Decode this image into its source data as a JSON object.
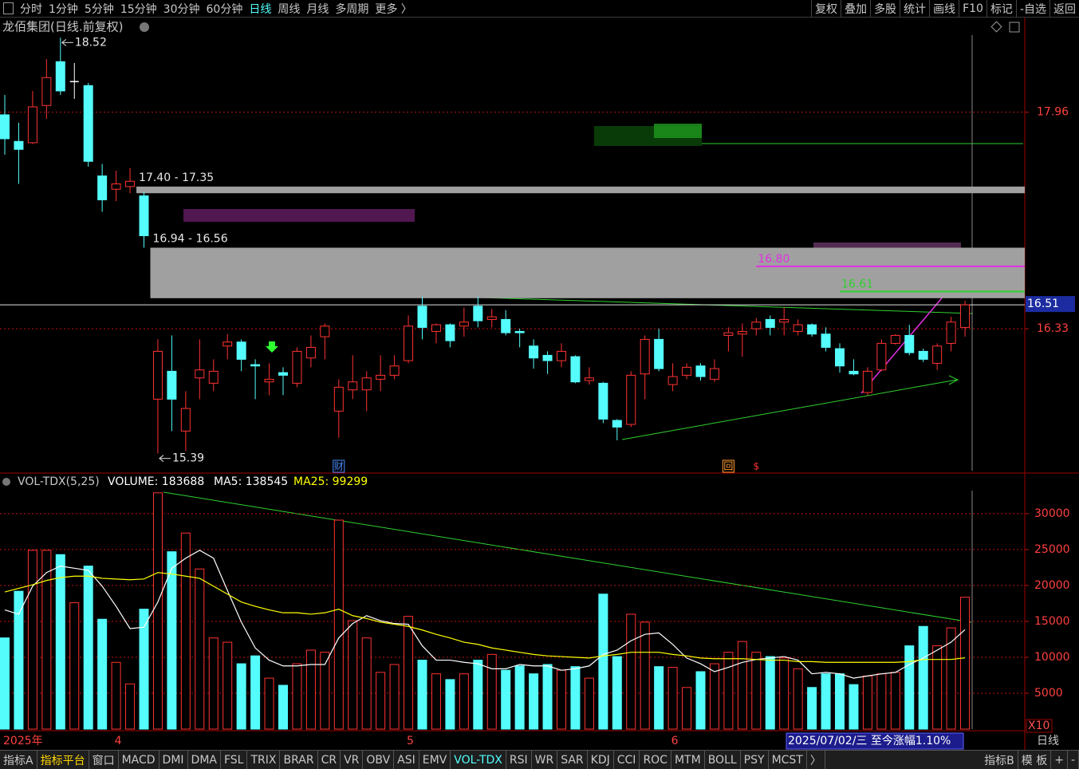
{
  "toolbar": {
    "left": [
      "分时",
      "1分钟",
      "5分钟",
      "15分钟",
      "30分钟",
      "60分钟",
      "日线",
      "周线",
      "月线",
      "多周期",
      "更多 〉"
    ],
    "active": 6,
    "right": [
      "复权",
      "叠加",
      "多股",
      "统计",
      "画线",
      "F10",
      "标记",
      "-自选",
      "返回"
    ]
  },
  "status": "2025/07/02/三  至今涨幅1.10%",
  "scale_note": "X10",
  "period": "日线",
  "tabs": {
    "left": [
      "指标A",
      "指标平台",
      "窗口",
      "MACD",
      "DMI",
      "DMA",
      "FSL",
      "TRIX",
      "BRAR",
      "CR",
      "VR",
      "OBV",
      "ASI",
      "EMV",
      "VOL-TDX",
      "RSI",
      "WR",
      "SAR",
      "KDJ",
      "CCI",
      "ROC",
      "MTM",
      "BOLL",
      "PSY",
      "MCST",
      "〉"
    ],
    "active": 14,
    "platform": 1,
    "right": [
      "指标B",
      "模 板",
      "+",
      "-"
    ]
  },
  "chart_data": [
    {
      "type": "candlestick",
      "title": "龙佰集团(日线.前复权)",
      "up_color": "#ff3232",
      "down_color": "#54fcfc",
      "open": [
        17.94,
        17.74,
        17.73,
        18.01,
        18.34,
        18.19,
        18.16,
        17.48,
        17.38,
        17.4,
        17.33,
        15.8,
        16.01,
        15.56,
        15.96,
        15.92,
        16.2,
        16.23,
        16.06,
        15.93,
        16.0,
        15.92,
        16.11,
        16.27,
        15.71,
        15.87,
        15.87,
        15.95,
        15.98,
        16.09,
        16.5,
        16.31,
        16.36,
        16.35,
        16.5,
        16.4,
        16.4,
        16.31,
        16.2,
        16.13,
        16.09,
        16.12,
        15.94,
        15.92,
        15.64,
        15.61,
        15.99,
        16.25,
        15.91,
        15.98,
        16.05,
        15.95,
        16.28,
        16.29,
        16.33,
        16.4,
        16.38,
        16.31,
        16.36,
        16.29,
        16.18,
        16.01,
        15.85,
        16.02,
        16.22,
        16.28,
        16.16,
        16.07,
        16.22,
        16.34
      ],
      "high": [
        18.09,
        17.88,
        18.12,
        18.36,
        18.52,
        18.33,
        18.18,
        17.57,
        17.52,
        17.54,
        17.36,
        16.25,
        16.28,
        15.86,
        16.25,
        16.1,
        16.29,
        16.25,
        16.1,
        16.07,
        16.04,
        16.19,
        16.28,
        16.37,
        15.95,
        16.13,
        16.01,
        16.13,
        16.13,
        16.43,
        16.57,
        16.37,
        16.37,
        16.49,
        16.57,
        16.48,
        16.47,
        16.33,
        16.25,
        16.16,
        16.22,
        16.13,
        16.04,
        15.93,
        15.65,
        16.01,
        16.28,
        16.33,
        16.07,
        16.07,
        16.07,
        16.1,
        16.34,
        16.37,
        16.41,
        16.43,
        16.49,
        16.4,
        16.37,
        16.34,
        16.22,
        16.1,
        16.04,
        16.25,
        16.29,
        16.36,
        16.18,
        16.22,
        16.42,
        16.54
      ],
      "low": [
        17.64,
        17.42,
        17.72,
        17.91,
        18.09,
        18.06,
        17.55,
        17.21,
        17.29,
        17.35,
        16.94,
        15.39,
        15.56,
        15.41,
        15.8,
        15.86,
        16.1,
        16.01,
        15.8,
        15.83,
        15.83,
        15.89,
        16.04,
        16.1,
        15.51,
        15.8,
        15.71,
        15.86,
        15.95,
        16.07,
        16.25,
        16.22,
        16.19,
        16.27,
        16.34,
        16.34,
        16.28,
        16.19,
        16.03,
        15.99,
        16.04,
        15.92,
        15.91,
        15.62,
        15.49,
        15.59,
        15.8,
        16.01,
        15.86,
        15.95,
        15.94,
        15.93,
        16.16,
        16.12,
        16.28,
        16.28,
        16.28,
        16.28,
        16.27,
        16.16,
        16.0,
        15.98,
        15.83,
        16.01,
        16.21,
        16.13,
        16.08,
        16.02,
        16.16,
        16.27
      ],
      "close": [
        17.76,
        17.68,
        18.0,
        18.22,
        18.12,
        18.19,
        17.59,
        17.3,
        17.42,
        17.44,
        17.03,
        16.16,
        15.8,
        15.73,
        16.02,
        16.01,
        16.23,
        16.1,
        16.05,
        15.95,
        15.98,
        16.16,
        16.19,
        16.35,
        15.89,
        15.93,
        15.96,
        15.98,
        16.05,
        16.35,
        16.34,
        16.36,
        16.24,
        16.38,
        16.39,
        16.42,
        16.3,
        16.3,
        16.11,
        16.09,
        16.16,
        15.93,
        15.96,
        15.65,
        15.59,
        15.98,
        16.25,
        16.03,
        15.97,
        16.04,
        15.97,
        16.03,
        16.3,
        16.31,
        16.38,
        16.34,
        16.4,
        16.36,
        16.29,
        16.19,
        16.05,
        15.99,
        16.01,
        16.22,
        16.28,
        16.15,
        16.1,
        16.2,
        16.38,
        16.51
      ],
      "ylim": [
        15.25,
        18.54
      ],
      "yticks": [
        17.96,
        16.33
      ],
      "grid": true,
      "last_price": 16.51,
      "annotations": [
        {
          "index": 4,
          "value": 18.52
        },
        {
          "index": 11,
          "value": 15.39
        }
      ],
      "gaps": [
        {
          "index": 9,
          "label": "17.40 - 17.35",
          "high": 17.4,
          "low": 17.35
        },
        {
          "index": 10,
          "label": "16.94 - 16.56",
          "high": 16.94,
          "low": 16.56
        }
      ],
      "levels": [
        {
          "label": "16.80",
          "value": 16.8,
          "color": "#e030e0",
          "index": 54
        },
        {
          "label": "16.61",
          "value": 16.61,
          "color": "#30d030",
          "index": 60
        }
      ],
      "markers": [
        {
          "index": 24,
          "text": "财",
          "color": "#4a8cff"
        },
        {
          "index": 52,
          "text": "回",
          "color": "#ff9a30"
        },
        {
          "index": 54,
          "text": "$",
          "color": "#ff3232"
        }
      ]
    },
    {
      "type": "bar",
      "title": "VOL-TDX(5,25)",
      "label": "VOLUME: 183688",
      "categories": [
        "2025年",
        null,
        null,
        null,
        null,
        null,
        null,
        null,
        "4",
        null,
        null,
        null,
        null,
        null,
        null,
        null,
        null,
        null,
        null,
        null,
        null,
        null,
        null,
        null,
        null,
        null,
        null,
        null,
        null,
        "5",
        null,
        null,
        null,
        null,
        null,
        null,
        null,
        null,
        null,
        null,
        null,
        null,
        null,
        null,
        null,
        null,
        null,
        null,
        "6",
        null,
        null,
        null,
        null,
        null,
        null,
        null,
        null,
        null,
        null,
        null,
        null,
        null,
        null,
        null,
        null,
        null,
        null,
        null,
        null,
        null
      ],
      "values": [
        12700,
        19200,
        24900,
        24900,
        24300,
        17600,
        22700,
        15300,
        9300,
        6300,
        16700,
        32900,
        24700,
        27300,
        22300,
        12700,
        12100,
        9100,
        10200,
        7100,
        6100,
        9100,
        11000,
        10700,
        29100,
        15100,
        12700,
        7900,
        9000,
        15700,
        9600,
        7700,
        6900,
        7700,
        9600,
        10400,
        8200,
        8800,
        7700,
        9000,
        8200,
        8700,
        7100,
        18800,
        10100,
        16000,
        14900,
        8700,
        8600,
        5800,
        8000,
        9100,
        10700,
        12200,
        10700,
        10100,
        9900,
        8400,
        5800,
        7700,
        7700,
        6200,
        7400,
        7700,
        7900,
        11600,
        14300,
        11600,
        14100,
        18369
      ],
      "lines": [
        {
          "label": "MA5: 138545",
          "color": "#ffffff",
          "values": [
            16600,
            16000,
            19900,
            21800,
            22700,
            22400,
            22100,
            19900,
            17100,
            14000,
            14200,
            17700,
            22400,
            23800,
            24900,
            23800,
            19300,
            14900,
            11300,
            9600,
            8800,
            8800,
            9000,
            9000,
            12700,
            14700,
            15800,
            15100,
            14700,
            14600,
            11600,
            9600,
            9600,
            9300,
            9100,
            8400,
            8400,
            9000,
            8800,
            8800,
            8200,
            8400,
            8800,
            10400,
            11000,
            12300,
            13200,
            13400,
            11800,
            9900,
            9100,
            8000,
            8600,
            9300,
            9700,
            9900,
            10100,
            9600,
            7700,
            7900,
            7700,
            7100,
            7400,
            7700,
            7900,
            9000,
            9900,
            11000,
            12100,
            13855
          ]
        },
        {
          "label": "MA25: 99299",
          "color": "#ffff00",
          "values": [
            19100,
            19600,
            20100,
            20700,
            21100,
            21300,
            21300,
            21000,
            20900,
            20800,
            20900,
            21800,
            21600,
            21300,
            21000,
            19900,
            18800,
            17700,
            17100,
            16600,
            16200,
            16200,
            16000,
            16200,
            16700,
            15800,
            15400,
            14900,
            14600,
            14300,
            13800,
            13200,
            12700,
            12100,
            11800,
            11300,
            11000,
            10700,
            10400,
            10200,
            10100,
            10000,
            9900,
            10200,
            10400,
            10700,
            10700,
            10700,
            10400,
            10200,
            9900,
            9800,
            9800,
            9800,
            9700,
            9600,
            9600,
            9400,
            9400,
            9300,
            9300,
            9300,
            9300,
            9300,
            9300,
            9400,
            9700,
            9700,
            9700,
            9930
          ]
        }
      ],
      "ylim": [
        0,
        35100
      ],
      "yticks": [
        5000,
        10000,
        15000,
        20000,
        25000,
        30000
      ],
      "grid": true
    }
  ]
}
